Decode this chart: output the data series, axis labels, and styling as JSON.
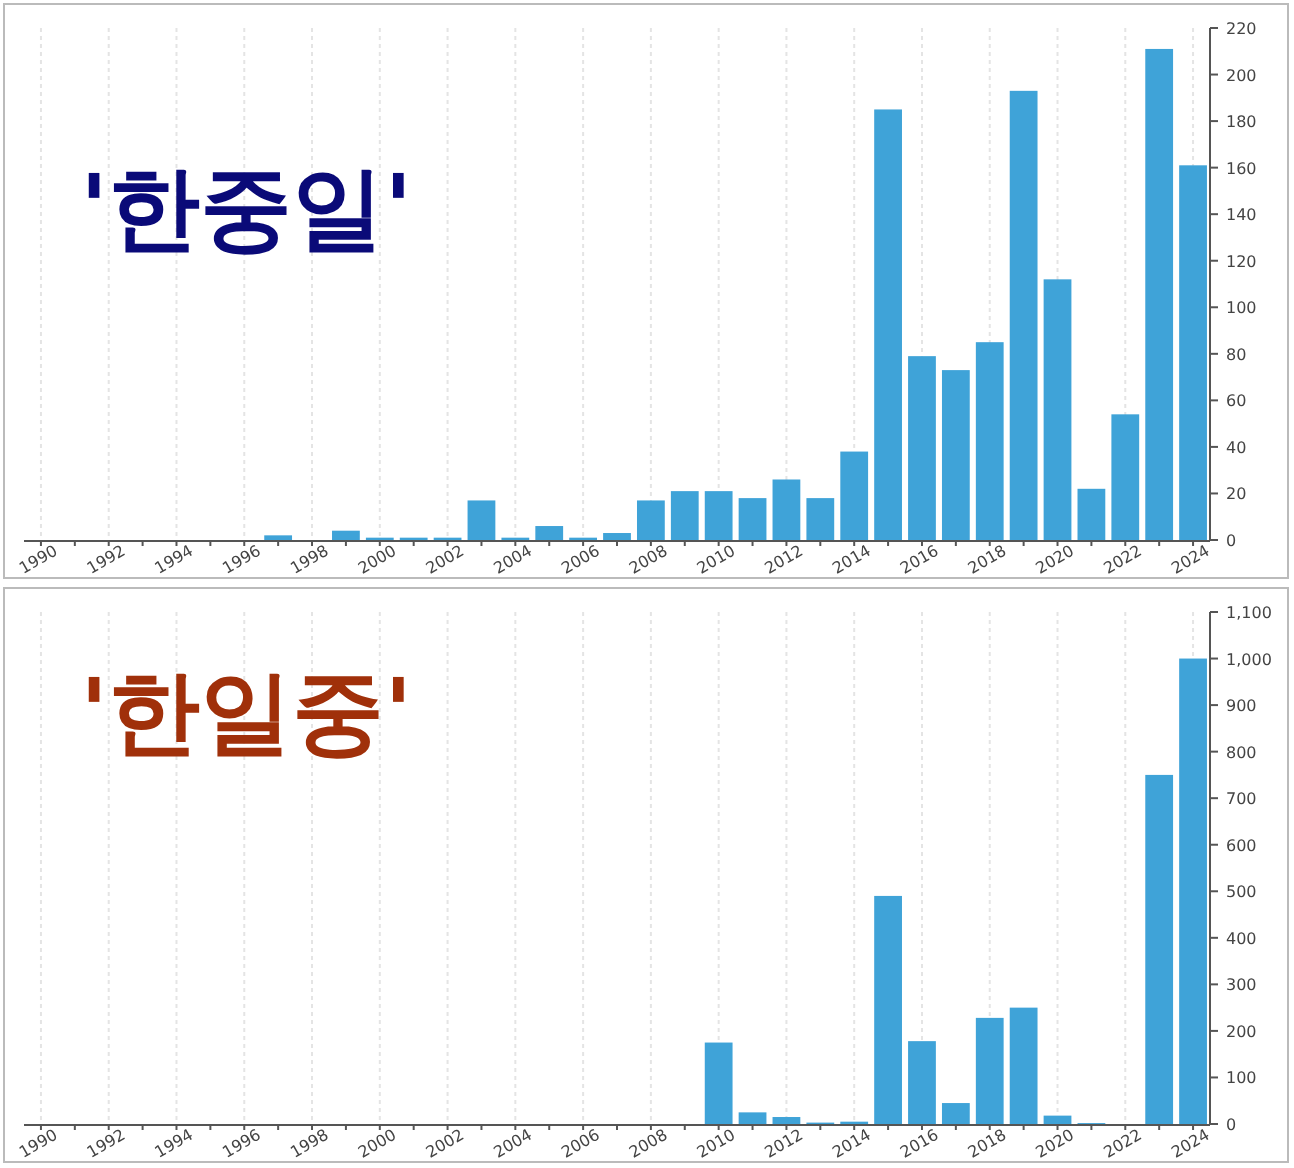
{
  "chart_data": [
    {
      "type": "bar",
      "title": "'한중일'",
      "categories": [
        "1990",
        null,
        "1992",
        null,
        "1994",
        null,
        "1996",
        null,
        "1998",
        null,
        "2000",
        null,
        "2002",
        null,
        "2004",
        null,
        "2006",
        null,
        "2008",
        null,
        "2010",
        null,
        "2012",
        null,
        "2014",
        null,
        "2016",
        null,
        "2018",
        null,
        "2020",
        null,
        "2022",
        null,
        "2024"
      ],
      "series": [
        {
          "color": "#3fa3d8",
          "values": [
            0,
            0,
            0,
            0,
            0,
            0,
            0,
            2,
            0,
            4,
            1,
            1,
            1,
            17,
            1,
            6,
            1,
            3,
            17,
            21,
            21,
            18,
            26,
            18,
            38,
            185,
            79,
            73,
            85,
            193,
            112,
            22,
            54,
            211,
            161
          ]
        }
      ],
      "ylim": [
        0,
        220
      ],
      "yticks": [
        0,
        20,
        40,
        60,
        80,
        100,
        120,
        140,
        160,
        180,
        200,
        220
      ],
      "grid": "x"
    },
    {
      "type": "bar",
      "title": "'한일중'",
      "categories": [
        "1990",
        null,
        "1992",
        null,
        "1994",
        null,
        "1996",
        null,
        "1998",
        null,
        "2000",
        null,
        "2002",
        null,
        "2004",
        null,
        "2006",
        null,
        "2008",
        null,
        "2010",
        null,
        "2012",
        null,
        "2014",
        null,
        "2016",
        null,
        "2018",
        null,
        "2020",
        null,
        "2022",
        null,
        "2024"
      ],
      "series": [
        {
          "color": "#3fa3d8",
          "values": [
            0,
            0,
            0,
            0,
            0,
            0,
            0,
            0,
            0,
            0,
            0,
            0,
            0,
            0,
            0,
            0,
            0,
            0,
            0,
            0,
            175,
            25,
            15,
            3,
            5,
            490,
            178,
            45,
            228,
            250,
            18,
            2,
            0,
            750,
            1000
          ]
        }
      ],
      "ylim": [
        0,
        1100
      ],
      "yticks": [
        0,
        100,
        200,
        300,
        400,
        500,
        600,
        700,
        800,
        900,
        {
          "value": 1000,
          "label": "1,000"
        },
        {
          "value": 1100,
          "label": "1,100"
        }
      ],
      "grid": "x"
    }
  ]
}
